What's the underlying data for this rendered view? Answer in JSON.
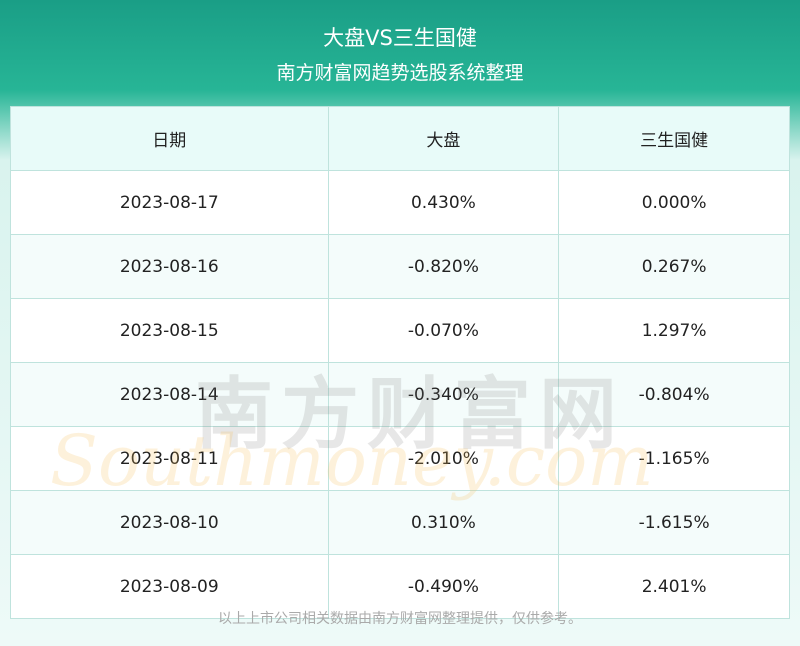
{
  "header": {
    "title": "大盘VS三生国健",
    "subtitle": "南方财富网趋势选股系统整理"
  },
  "table": {
    "columns": [
      "日期",
      "大盘",
      "三生国健"
    ],
    "rows": [
      [
        "2023-08-17",
        "0.430%",
        "0.000%"
      ],
      [
        "2023-08-16",
        "-0.820%",
        "0.267%"
      ],
      [
        "2023-08-15",
        "-0.070%",
        "1.297%"
      ],
      [
        "2023-08-14",
        "-0.340%",
        "-0.804%"
      ],
      [
        "2023-08-11",
        "-2.010%",
        "-1.165%"
      ],
      [
        "2023-08-10",
        "0.310%",
        "-1.615%"
      ],
      [
        "2023-08-09",
        "-0.490%",
        "2.401%"
      ]
    ]
  },
  "watermark": {
    "cn": "南方财富网",
    "en": "Southmoney.com"
  },
  "footer": "以上上市公司相关数据由南方财富网整理提供，仅供参考。"
}
